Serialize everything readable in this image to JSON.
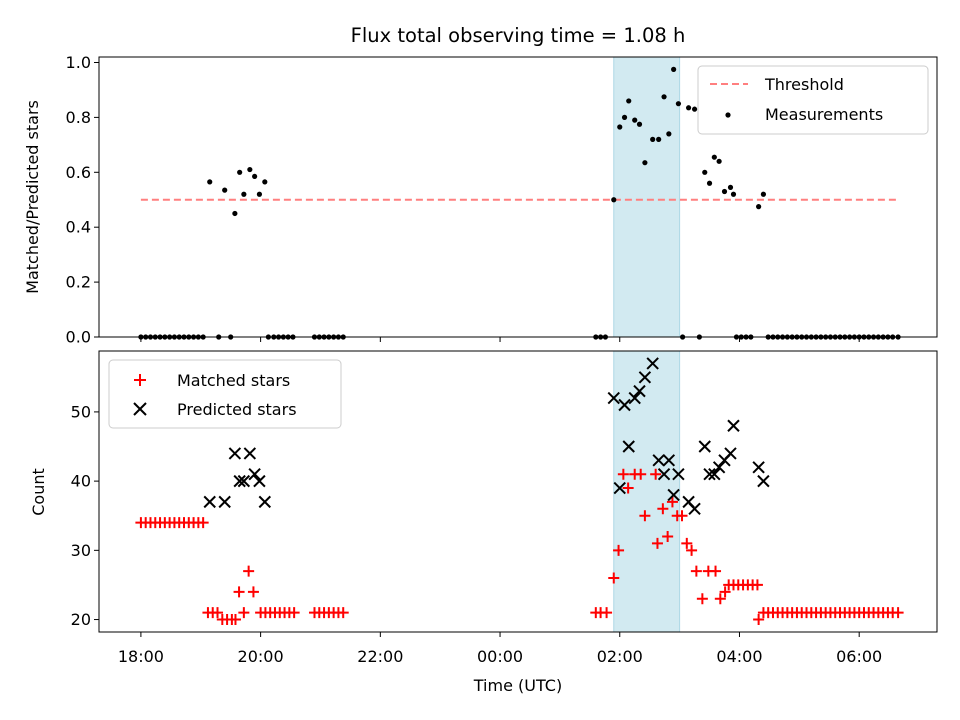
{
  "title": "Flux total observing time = 1.08 h",
  "chart_data": [
    {
      "type": "scatter",
      "ylabel": "Matched/Predicted stars",
      "xlabel": "",
      "xlim": [
        17.3,
        31.3
      ],
      "ylim": [
        0,
        1.02
      ],
      "y_ticks": [
        0.0,
        0.2,
        0.4,
        0.6,
        0.8,
        1.0
      ],
      "y_tick_labels": [
        "0.0",
        "0.2",
        "0.4",
        "0.6",
        "0.8",
        "1.0"
      ],
      "legend_position": "upper right",
      "shaded_interval": [
        25.9,
        27.0
      ],
      "shade_color": "#add8e6",
      "threshold": {
        "name": "Threshold",
        "y": 0.5,
        "x_range": [
          18.0,
          30.65
        ],
        "color": "#ff7f7f",
        "style": "dashed"
      },
      "series": [
        {
          "name": "Measurements",
          "color": "#000000",
          "marker": "dot",
          "points": [
            [
              18.0,
              0
            ],
            [
              18.08,
              0
            ],
            [
              18.16,
              0
            ],
            [
              18.24,
              0
            ],
            [
              18.32,
              0
            ],
            [
              18.4,
              0
            ],
            [
              18.48,
              0
            ],
            [
              18.56,
              0
            ],
            [
              18.64,
              0
            ],
            [
              18.72,
              0
            ],
            [
              18.8,
              0
            ],
            [
              18.88,
              0
            ],
            [
              18.96,
              0
            ],
            [
              19.04,
              0
            ],
            [
              19.15,
              0.565
            ],
            [
              19.3,
              0
            ],
            [
              19.4,
              0.535
            ],
            [
              19.5,
              0
            ],
            [
              19.57,
              0.45
            ],
            [
              19.65,
              0.6
            ],
            [
              19.72,
              0.52
            ],
            [
              19.82,
              0.61
            ],
            [
              19.9,
              0.585
            ],
            [
              19.98,
              0.52
            ],
            [
              20.07,
              0.565
            ],
            [
              20.13,
              0
            ],
            [
              20.22,
              0
            ],
            [
              20.3,
              0
            ],
            [
              20.38,
              0
            ],
            [
              20.46,
              0
            ],
            [
              20.54,
              0
            ],
            [
              20.9,
              0
            ],
            [
              20.98,
              0
            ],
            [
              21.06,
              0
            ],
            [
              21.14,
              0
            ],
            [
              21.22,
              0
            ],
            [
              21.3,
              0
            ],
            [
              21.38,
              0
            ],
            [
              25.6,
              0
            ],
            [
              25.68,
              0
            ],
            [
              25.76,
              0
            ],
            [
              25.9,
              0.5
            ],
            [
              26.0,
              0.765
            ],
            [
              26.08,
              0.8
            ],
            [
              26.15,
              0.86
            ],
            [
              26.25,
              0.79
            ],
            [
              26.33,
              0.775
            ],
            [
              26.42,
              0.635
            ],
            [
              26.55,
              0.72
            ],
            [
              26.65,
              0.72
            ],
            [
              26.74,
              0.875
            ],
            [
              26.82,
              0.74
            ],
            [
              26.9,
              0.975
            ],
            [
              26.98,
              0.85
            ],
            [
              27.05,
              0
            ],
            [
              27.15,
              0.835
            ],
            [
              27.25,
              0.83
            ],
            [
              27.33,
              0
            ],
            [
              27.42,
              0.6
            ],
            [
              27.5,
              0.56
            ],
            [
              27.58,
              0.655
            ],
            [
              27.66,
              0.64
            ],
            [
              27.75,
              0.53
            ],
            [
              27.85,
              0.545
            ],
            [
              27.9,
              0.52
            ],
            [
              27.95,
              0
            ],
            [
              28.03,
              0
            ],
            [
              28.11,
              0
            ],
            [
              28.19,
              0
            ],
            [
              28.32,
              0.475
            ],
            [
              28.4,
              0.52
            ],
            [
              28.48,
              0
            ],
            [
              28.56,
              0
            ],
            [
              28.64,
              0
            ],
            [
              28.72,
              0
            ],
            [
              28.8,
              0
            ],
            [
              28.88,
              0
            ],
            [
              28.96,
              0
            ],
            [
              29.04,
              0
            ],
            [
              29.12,
              0
            ],
            [
              29.2,
              0
            ],
            [
              29.28,
              0
            ],
            [
              29.36,
              0
            ],
            [
              29.44,
              0
            ],
            [
              29.52,
              0
            ],
            [
              29.6,
              0
            ],
            [
              29.68,
              0
            ],
            [
              29.76,
              0
            ],
            [
              29.84,
              0
            ],
            [
              29.92,
              0
            ],
            [
              30.0,
              0
            ],
            [
              30.08,
              0
            ],
            [
              30.16,
              0
            ],
            [
              30.24,
              0
            ],
            [
              30.32,
              0
            ],
            [
              30.4,
              0
            ],
            [
              30.48,
              0
            ],
            [
              30.56,
              0
            ],
            [
              30.65,
              0
            ]
          ]
        }
      ]
    },
    {
      "type": "scatter",
      "ylabel": "Count",
      "xlabel": "Time (UTC)",
      "xlim": [
        17.3,
        31.3
      ],
      "ylim": [
        18.2,
        58.8
      ],
      "y_ticks": [
        20,
        30,
        40,
        50
      ],
      "y_tick_labels": [
        "20",
        "30",
        "40",
        "50"
      ],
      "x_ticks": [
        18,
        20,
        22,
        24,
        26,
        28,
        30
      ],
      "x_tick_labels": [
        "18:00",
        "20:00",
        "22:00",
        "00:00",
        "02:00",
        "04:00",
        "06:00"
      ],
      "legend_position": "upper left",
      "shaded_interval": [
        25.9,
        27.0
      ],
      "shade_color": "#add8e6",
      "series": [
        {
          "name": "Matched stars",
          "color": "#ff0000",
          "marker": "plus",
          "points": [
            [
              18.0,
              34
            ],
            [
              18.08,
              34
            ],
            [
              18.16,
              34
            ],
            [
              18.24,
              34
            ],
            [
              18.32,
              34
            ],
            [
              18.4,
              34
            ],
            [
              18.48,
              34
            ],
            [
              18.56,
              34
            ],
            [
              18.64,
              34
            ],
            [
              18.72,
              34
            ],
            [
              18.8,
              34
            ],
            [
              18.88,
              34
            ],
            [
              18.96,
              34
            ],
            [
              19.04,
              34
            ],
            [
              19.12,
              21
            ],
            [
              19.2,
              21
            ],
            [
              19.28,
              21
            ],
            [
              19.36,
              20
            ],
            [
              19.44,
              20
            ],
            [
              19.52,
              20
            ],
            [
              19.58,
              20
            ],
            [
              19.64,
              24
            ],
            [
              19.72,
              21
            ],
            [
              19.8,
              27
            ],
            [
              19.88,
              24
            ],
            [
              20.0,
              21
            ],
            [
              20.08,
              21
            ],
            [
              20.16,
              21
            ],
            [
              20.24,
              21
            ],
            [
              20.32,
              21
            ],
            [
              20.4,
              21
            ],
            [
              20.48,
              21
            ],
            [
              20.56,
              21
            ],
            [
              20.9,
              21
            ],
            [
              20.98,
              21
            ],
            [
              21.06,
              21
            ],
            [
              21.14,
              21
            ],
            [
              21.22,
              21
            ],
            [
              21.3,
              21
            ],
            [
              21.38,
              21
            ],
            [
              25.6,
              21
            ],
            [
              25.68,
              21
            ],
            [
              25.78,
              21
            ],
            [
              25.9,
              26
            ],
            [
              25.98,
              30
            ],
            [
              26.06,
              41
            ],
            [
              26.14,
              39
            ],
            [
              26.25,
              41
            ],
            [
              26.35,
              41
            ],
            [
              26.42,
              35
            ],
            [
              26.6,
              41
            ],
            [
              26.63,
              31
            ],
            [
              26.72,
              36
            ],
            [
              26.8,
              32
            ],
            [
              26.88,
              37
            ],
            [
              26.96,
              35
            ],
            [
              27.04,
              35
            ],
            [
              27.12,
              31
            ],
            [
              27.2,
              30
            ],
            [
              27.28,
              27
            ],
            [
              27.38,
              23
            ],
            [
              27.48,
              27
            ],
            [
              27.6,
              27
            ],
            [
              27.68,
              23
            ],
            [
              27.76,
              24
            ],
            [
              27.82,
              25
            ],
            [
              27.9,
              25
            ],
            [
              27.98,
              25
            ],
            [
              28.06,
              25
            ],
            [
              28.14,
              25
            ],
            [
              28.22,
              25
            ],
            [
              28.3,
              25
            ],
            [
              28.32,
              20
            ],
            [
              28.4,
              21
            ],
            [
              28.48,
              21
            ],
            [
              28.56,
              21
            ],
            [
              28.64,
              21
            ],
            [
              28.72,
              21
            ],
            [
              28.8,
              21
            ],
            [
              28.88,
              21
            ],
            [
              28.96,
              21
            ],
            [
              29.04,
              21
            ],
            [
              29.12,
              21
            ],
            [
              29.2,
              21
            ],
            [
              29.28,
              21
            ],
            [
              29.36,
              21
            ],
            [
              29.44,
              21
            ],
            [
              29.52,
              21
            ],
            [
              29.6,
              21
            ],
            [
              29.68,
              21
            ],
            [
              29.76,
              21
            ],
            [
              29.84,
              21
            ],
            [
              29.92,
              21
            ],
            [
              30.0,
              21
            ],
            [
              30.08,
              21
            ],
            [
              30.16,
              21
            ],
            [
              30.24,
              21
            ],
            [
              30.32,
              21
            ],
            [
              30.4,
              21
            ],
            [
              30.48,
              21
            ],
            [
              30.56,
              21
            ],
            [
              30.65,
              21
            ]
          ]
        },
        {
          "name": "Predicted stars",
          "color": "#000000",
          "marker": "x",
          "points": [
            [
              19.15,
              37
            ],
            [
              19.4,
              37
            ],
            [
              19.57,
              44
            ],
            [
              19.65,
              40
            ],
            [
              19.72,
              40
            ],
            [
              19.82,
              44
            ],
            [
              19.9,
              41
            ],
            [
              19.98,
              40
            ],
            [
              20.07,
              37
            ],
            [
              25.9,
              52
            ],
            [
              26.0,
              39
            ],
            [
              26.08,
              51
            ],
            [
              26.15,
              45
            ],
            [
              26.25,
              52
            ],
            [
              26.33,
              53
            ],
            [
              26.42,
              55
            ],
            [
              26.55,
              57
            ],
            [
              26.65,
              43
            ],
            [
              26.74,
              41
            ],
            [
              26.82,
              43
            ],
            [
              26.9,
              38
            ],
            [
              26.98,
              41
            ],
            [
              27.15,
              37
            ],
            [
              27.25,
              36
            ],
            [
              27.42,
              45
            ],
            [
              27.5,
              41
            ],
            [
              27.58,
              41
            ],
            [
              27.66,
              42
            ],
            [
              27.75,
              43
            ],
            [
              27.85,
              44
            ],
            [
              27.9,
              48
            ],
            [
              28.32,
              42
            ],
            [
              28.4,
              40
            ]
          ]
        }
      ]
    }
  ]
}
